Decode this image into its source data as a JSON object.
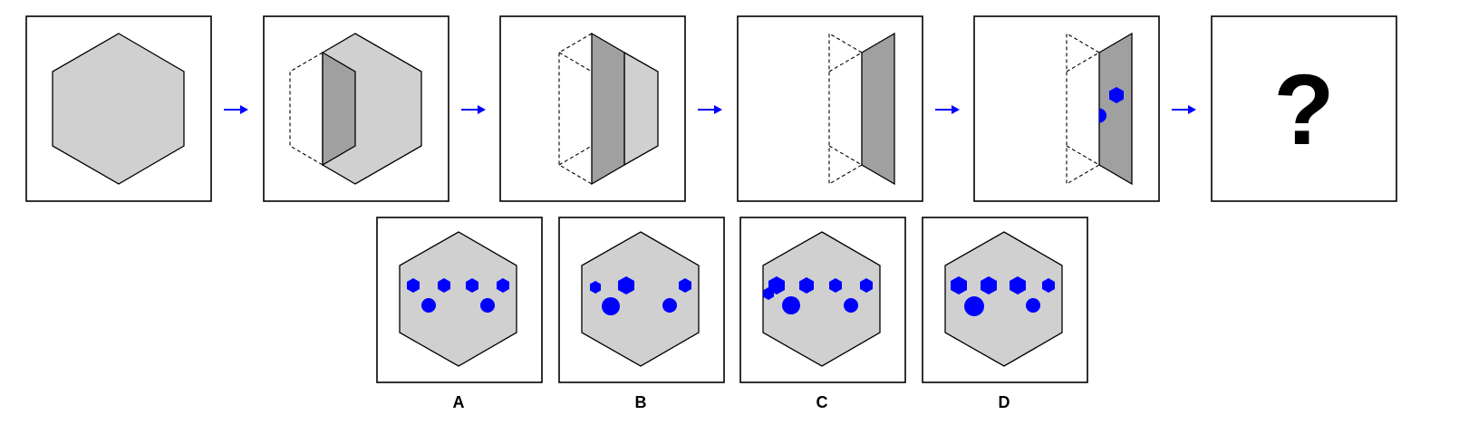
{
  "question_mark": "?",
  "option_labels": [
    "A",
    "B",
    "C",
    "D"
  ],
  "colors": {
    "paper": "#d0d0d0",
    "fold": "#a0a0a0",
    "hole": "#0000ff",
    "arrow": "#0000ff",
    "frame": "#000000"
  },
  "icons": [
    "right-arrow-icon"
  ]
}
